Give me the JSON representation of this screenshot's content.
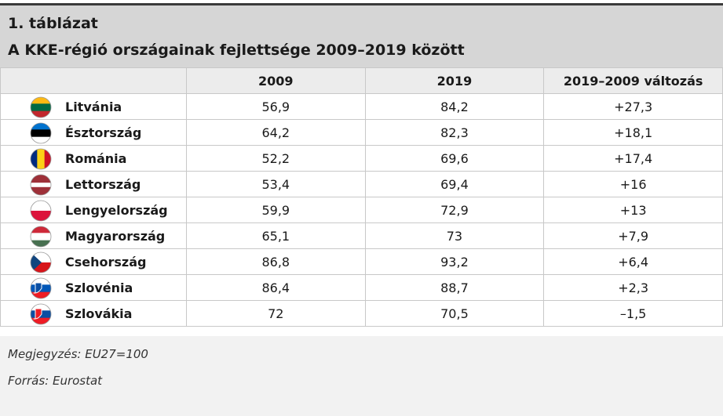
{
  "header": {
    "title": "1. táblázat",
    "subtitle": "A KKE-régió országainak fejlettsége 2009–2019 között"
  },
  "table": {
    "columns": [
      "",
      "2009",
      "2019",
      "2019–2009 változás"
    ],
    "rows": [
      [
        "Litvánia",
        "56,9",
        "84,2",
        "+27,3"
      ],
      [
        "Észtország",
        "64,2",
        "82,3",
        "+18,1"
      ],
      [
        "Románia",
        "52,2",
        "69,6",
        "+17,4"
      ],
      [
        "Lettország",
        "53,4",
        "69,4",
        "+16"
      ],
      [
        "Lengyelország",
        "59,9",
        "72,9",
        "+13"
      ],
      [
        "Magyarország",
        "65,1",
        "73",
        "+7,9"
      ],
      [
        "Csehország",
        "86,8",
        "93,2",
        "+6,4"
      ],
      [
        "Szlovénia",
        "86,4",
        "88,7",
        "+2,3"
      ],
      [
        "Szlovákia",
        "72",
        "70,5",
        "–1,5"
      ]
    ]
  },
  "notes": [
    "Megjegyzés: EU27=100",
    "Forrás: Eurostat"
  ]
}
